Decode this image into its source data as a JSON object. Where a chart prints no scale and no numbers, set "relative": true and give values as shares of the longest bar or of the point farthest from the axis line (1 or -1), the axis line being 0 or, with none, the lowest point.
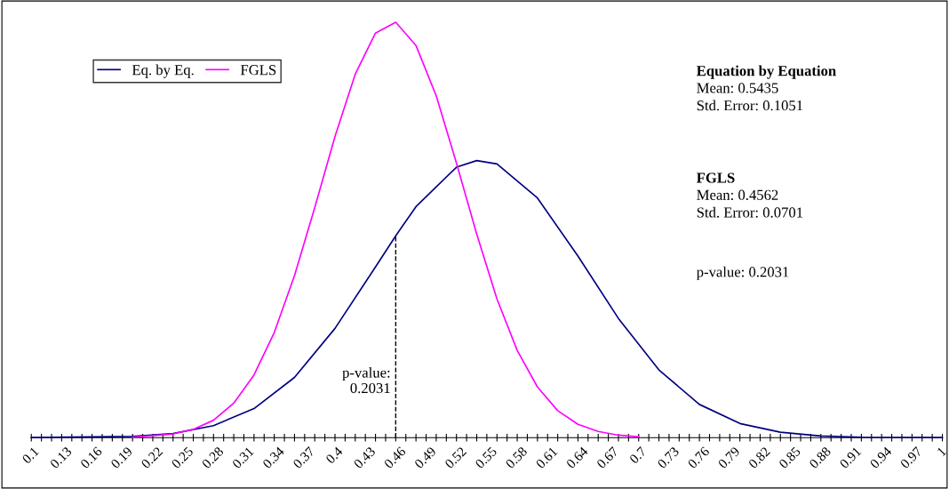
{
  "chart_data": {
    "type": "line",
    "relative": true,
    "legend": "top left",
    "grid": false,
    "marker": "none",
    "line_style": "solid",
    "xlim": [
      0.1,
      1.0
    ],
    "xticks": [
      0.1,
      {
        "value": 0.11,
        "label": null
      },
      {
        "value": 0.12,
        "label": null
      },
      0.13,
      {
        "value": 0.14,
        "label": null
      },
      {
        "value": 0.15,
        "label": null
      },
      0.16,
      {
        "value": 0.17,
        "label": null
      },
      {
        "value": 0.18,
        "label": null
      },
      0.19,
      {
        "value": 0.2,
        "label": null
      },
      {
        "value": 0.21,
        "label": null
      },
      0.22,
      {
        "value": 0.23,
        "label": null
      },
      {
        "value": 0.24,
        "label": null
      },
      0.25,
      {
        "value": 0.26,
        "label": null
      },
      {
        "value": 0.27,
        "label": null
      },
      0.28,
      {
        "value": 0.29,
        "label": null
      },
      {
        "value": 0.3,
        "label": null
      },
      0.31,
      {
        "value": 0.32,
        "label": null
      },
      {
        "value": 0.33,
        "label": null
      },
      0.34,
      {
        "value": 0.35,
        "label": null
      },
      {
        "value": 0.36,
        "label": null
      },
      0.37,
      {
        "value": 0.38,
        "label": null
      },
      {
        "value": 0.39,
        "label": null
      },
      0.4,
      {
        "value": 0.41,
        "label": null
      },
      {
        "value": 0.42,
        "label": null
      },
      0.43,
      {
        "value": 0.44,
        "label": null
      },
      {
        "value": 0.45,
        "label": null
      },
      0.46,
      {
        "value": 0.47,
        "label": null
      },
      {
        "value": 0.48,
        "label": null
      },
      0.49,
      {
        "value": 0.5,
        "label": null
      },
      {
        "value": 0.51,
        "label": null
      },
      0.52,
      {
        "value": 0.53,
        "label": null
      },
      {
        "value": 0.54,
        "label": null
      },
      0.55,
      {
        "value": 0.56,
        "label": null
      },
      {
        "value": 0.57,
        "label": null
      },
      0.58,
      {
        "value": 0.59,
        "label": null
      },
      {
        "value": 0.6,
        "label": null
      },
      0.61,
      {
        "value": 0.62,
        "label": null
      },
      {
        "value": 0.63,
        "label": null
      },
      0.64,
      {
        "value": 0.65,
        "label": null
      },
      {
        "value": 0.66,
        "label": null
      },
      0.67,
      {
        "value": 0.68,
        "label": null
      },
      {
        "value": 0.69,
        "label": null
      },
      0.7,
      {
        "value": 0.71,
        "label": null
      },
      {
        "value": 0.72,
        "label": null
      },
      0.73,
      {
        "value": 0.74,
        "label": null
      },
      {
        "value": 0.75,
        "label": null
      },
      0.76,
      {
        "value": 0.77,
        "label": null
      },
      {
        "value": 0.78,
        "label": null
      },
      0.79,
      {
        "value": 0.8,
        "label": null
      },
      {
        "value": 0.81,
        "label": null
      },
      0.82,
      {
        "value": 0.83,
        "label": null
      },
      {
        "value": 0.84,
        "label": null
      },
      0.85,
      {
        "value": 0.86,
        "label": null
      },
      {
        "value": 0.87,
        "label": null
      },
      0.88,
      {
        "value": 0.89,
        "label": null
      },
      {
        "value": 0.9,
        "label": null
      },
      0.91,
      {
        "value": 0.92,
        "label": null
      },
      {
        "value": 0.93,
        "label": null
      },
      0.94,
      {
        "value": 0.95,
        "label": null
      },
      {
        "value": 0.96,
        "label": null
      },
      0.97,
      {
        "value": 0.98,
        "label": null
      },
      {
        "value": 0.99,
        "label": null
      },
      1
    ],
    "series": [
      {
        "name": "Eq. by Eq.",
        "color": "#000080",
        "x": [
          0.1,
          0.2,
          0.24,
          0.28,
          0.32,
          0.36,
          0.4,
          0.44,
          0.46,
          0.48,
          0.52,
          0.54,
          0.56,
          0.6,
          0.64,
          0.68,
          0.72,
          0.76,
          0.8,
          0.84,
          0.88,
          0.92,
          1.0
        ],
        "values": [
          0.0001,
          0.003,
          0.01,
          0.029,
          0.07,
          0.145,
          0.263,
          0.411,
          0.486,
          0.556,
          0.651,
          0.667,
          0.659,
          0.577,
          0.437,
          0.287,
          0.163,
          0.08,
          0.034,
          0.013,
          0.004,
          0.001,
          0.0001
        ]
      },
      {
        "name": "FGLS",
        "color": "#ff00ff",
        "x": [
          0.2,
          0.24,
          0.26,
          0.28,
          0.3,
          0.32,
          0.34,
          0.36,
          0.38,
          0.4,
          0.42,
          0.44,
          0.46,
          0.48,
          0.5,
          0.52,
          0.54,
          0.56,
          0.58,
          0.6,
          0.62,
          0.64,
          0.66,
          0.68,
          0.7
        ],
        "values": [
          0.001,
          0.009,
          0.02,
          0.042,
          0.083,
          0.151,
          0.253,
          0.39,
          0.554,
          0.725,
          0.875,
          0.974,
          1,
          0.944,
          0.823,
          0.661,
          0.49,
          0.334,
          0.21,
          0.122,
          0.065,
          0.032,
          0.015,
          0.006,
          0.002
        ]
      }
    ],
    "ref_lines": [
      {
        "axis": "x",
        "value": 0.46,
        "color": "#000000",
        "line_style": "dashed"
      }
    ],
    "annotations": [
      "Equation by Equation",
      "Mean: 0.5435\nStd. Error: 0.1051",
      "FGLS",
      "Mean: 0.4562\nStd. Error: 0.0701",
      "p-value: 0.2031",
      {
        "text": "p-value:\n0.2031",
        "x": 0.46,
        "y": 0.1
      }
    ]
  }
}
